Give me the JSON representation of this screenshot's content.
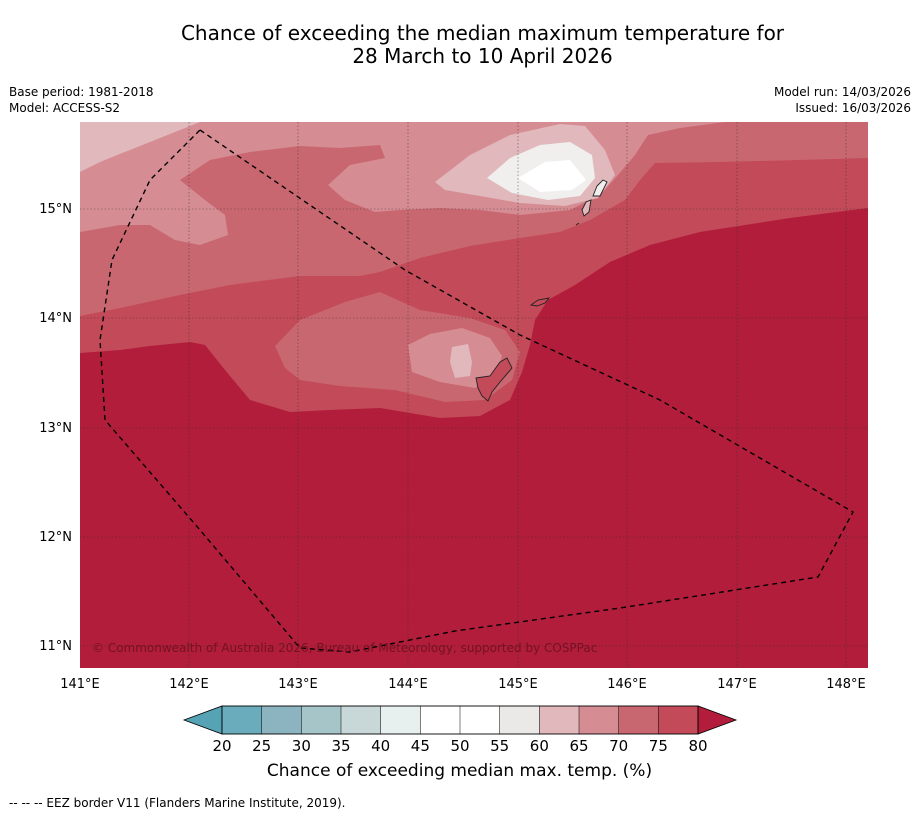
{
  "title": {
    "line1": "Chance of exceeding the median maximum temperature for",
    "line2": "28 March to 10 April 2026"
  },
  "meta_left": {
    "base_period": "Base period: 1981-2018",
    "model": "Model: ACCESS-S2"
  },
  "meta_right": {
    "model_run": "Model run: 14/03/2026",
    "issued": "Issued: 16/03/2026"
  },
  "map": {
    "lat_labels": [
      "15°N",
      "14°N",
      "13°N",
      "12°N",
      "11°N"
    ],
    "lon_labels": [
      "141°E",
      "142°E",
      "143°E",
      "144°E",
      "145°E",
      "146°E",
      "147°E",
      "148°E"
    ],
    "copyright": "© Commonwealth of Australia 2026, Bureau of Meteorology, supported by COSPPac",
    "colors": {
      "p80": "#b11d3a",
      "p75": "#c34a58",
      "p70": "#c96770",
      "p65": "#d68c93",
      "p60": "#e1b8bc",
      "p55": "#f1eeee",
      "p50": "#ffffff"
    }
  },
  "colorbar": {
    "ticks": [
      "20",
      "25",
      "30",
      "35",
      "40",
      "45",
      "50",
      "55",
      "60",
      "65",
      "70",
      "75",
      "80"
    ],
    "colors": [
      "#6aacbb",
      "#8bb4c0",
      "#a6c5c9",
      "#c8d7d8",
      "#e8f0ef",
      "#ffffff",
      "#ffffff",
      "#ebe8e8",
      "#e1b8bc",
      "#d68c93",
      "#c96770",
      "#c34a58"
    ],
    "low_color": "#55a3b4",
    "high_color": "#b11d3a",
    "title": "Chance of exceeding median max. temp. (%)"
  },
  "footer": "--  --  -- EEZ border V11 (Flanders Marine Institute, 2019)."
}
